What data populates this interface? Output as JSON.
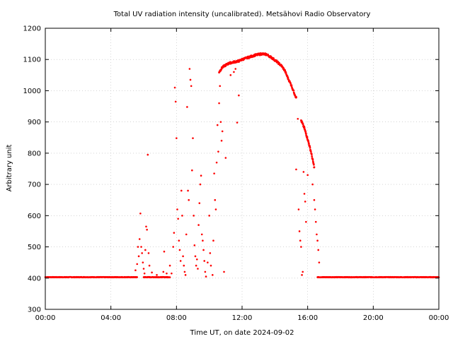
{
  "chart_data": {
    "type": "scatter",
    "title": "Total UV radiation intensity (uncalibrated). Metsähovi Radio Observatory",
    "xlabel": "Time UT, on date 2024-09-02",
    "ylabel": "Arbitrary unit",
    "x_unit": "hours UT",
    "xlim": [
      0,
      24
    ],
    "ylim": [
      300,
      1200
    ],
    "x_ticks": [
      {
        "value": 0,
        "label": "00:00"
      },
      {
        "value": 4,
        "label": "04:00"
      },
      {
        "value": 8,
        "label": "08:00"
      },
      {
        "value": 12,
        "label": "12:00"
      },
      {
        "value": 16,
        "label": "16:00"
      },
      {
        "value": 20,
        "label": "20:00"
      },
      {
        "value": 24,
        "label": "00:00"
      }
    ],
    "y_ticks": [
      300,
      400,
      500,
      600,
      700,
      800,
      900,
      1000,
      1100,
      1200
    ],
    "grid": true,
    "grid_style": "dotted",
    "marker_color": "#ff0000",
    "series": [
      {
        "baseline": {
          "value": 403,
          "ranges": [
            [
              0,
              5.6
            ],
            [
              6.0,
              7.6
            ],
            [
              16.6,
              24
            ]
          ]
        },
        "curve": [
          [
            10.6,
            1060
          ],
          [
            10.8,
            1075
          ],
          [
            11.0,
            1082
          ],
          [
            11.2,
            1088
          ],
          [
            11.5,
            1092
          ],
          [
            11.8,
            1095
          ],
          [
            12.0,
            1100
          ],
          [
            12.4,
            1107
          ],
          [
            12.8,
            1114
          ],
          [
            13.2,
            1118
          ],
          [
            13.5,
            1116
          ],
          [
            13.8,
            1106
          ],
          [
            14.1,
            1094
          ],
          [
            14.4,
            1080
          ],
          [
            14.6,
            1065
          ],
          [
            14.8,
            1040
          ],
          [
            15.0,
            1018
          ],
          [
            15.2,
            990
          ],
          [
            15.3,
            978
          ]
        ],
        "curve2": [
          [
            15.6,
            905
          ],
          [
            15.8,
            880
          ],
          [
            15.9,
            862
          ],
          [
            16.0,
            845
          ],
          [
            16.1,
            825
          ],
          [
            16.2,
            805
          ],
          [
            16.3,
            780
          ],
          [
            16.4,
            755
          ]
        ],
        "points": [
          [
            5.5,
            425
          ],
          [
            5.6,
            445
          ],
          [
            5.65,
            500
          ],
          [
            5.7,
            470
          ],
          [
            5.75,
            525
          ],
          [
            5.8,
            607
          ],
          [
            5.85,
            500
          ],
          [
            5.9,
            480
          ],
          [
            5.95,
            450
          ],
          [
            6.0,
            430
          ],
          [
            6.05,
            415
          ],
          [
            6.1,
            490
          ],
          [
            6.15,
            565
          ],
          [
            6.2,
            555
          ],
          [
            6.25,
            795
          ],
          [
            6.3,
            480
          ],
          [
            6.35,
            440
          ],
          [
            6.5,
            418
          ],
          [
            6.8,
            410
          ],
          [
            7.2,
            420
          ],
          [
            7.25,
            485
          ],
          [
            7.4,
            415
          ],
          [
            7.6,
            440
          ],
          [
            7.7,
            415
          ],
          [
            7.8,
            500
          ],
          [
            7.85,
            545
          ],
          [
            7.9,
            1010
          ],
          [
            7.95,
            965
          ],
          [
            8.0,
            848
          ],
          [
            8.05,
            620
          ],
          [
            8.1,
            590
          ],
          [
            8.15,
            520
          ],
          [
            8.2,
            490
          ],
          [
            8.25,
            455
          ],
          [
            8.3,
            680
          ],
          [
            8.35,
            600
          ],
          [
            8.4,
            470
          ],
          [
            8.45,
            440
          ],
          [
            8.5,
            420
          ],
          [
            8.55,
            410
          ],
          [
            8.6,
            540
          ],
          [
            8.65,
            948
          ],
          [
            8.7,
            680
          ],
          [
            8.75,
            650
          ],
          [
            8.8,
            1070
          ],
          [
            8.85,
            1035
          ],
          [
            8.9,
            1015
          ],
          [
            8.95,
            745
          ],
          [
            9.0,
            848
          ],
          [
            9.05,
            600
          ],
          [
            9.1,
            505
          ],
          [
            9.15,
            470
          ],
          [
            9.2,
            440
          ],
          [
            9.25,
            460
          ],
          [
            9.3,
            430
          ],
          [
            9.35,
            570
          ],
          [
            9.4,
            640
          ],
          [
            9.45,
            700
          ],
          [
            9.5,
            728
          ],
          [
            9.55,
            540
          ],
          [
            9.6,
            520
          ],
          [
            9.65,
            490
          ],
          [
            9.7,
            455
          ],
          [
            9.75,
            420
          ],
          [
            9.8,
            405
          ],
          [
            9.9,
            450
          ],
          [
            10.0,
            600
          ],
          [
            10.05,
            480
          ],
          [
            10.1,
            440
          ],
          [
            10.2,
            410
          ],
          [
            10.25,
            520
          ],
          [
            10.3,
            735
          ],
          [
            10.35,
            650
          ],
          [
            10.4,
            620
          ],
          [
            10.45,
            770
          ],
          [
            10.5,
            890
          ],
          [
            10.55,
            805
          ],
          [
            10.6,
            960
          ],
          [
            10.65,
            1015
          ],
          [
            10.7,
            900
          ],
          [
            10.75,
            840
          ],
          [
            10.8,
            870
          ],
          [
            10.9,
            420
          ],
          [
            11.0,
            785
          ],
          [
            11.3,
            1050
          ],
          [
            11.5,
            1060
          ],
          [
            11.6,
            1070
          ],
          [
            11.7,
            898
          ],
          [
            11.8,
            985
          ],
          [
            15.3,
            748
          ],
          [
            15.4,
            910
          ],
          [
            15.45,
            620
          ],
          [
            15.5,
            550
          ],
          [
            15.55,
            520
          ],
          [
            15.6,
            500
          ],
          [
            15.65,
            410
          ],
          [
            15.7,
            420
          ],
          [
            15.75,
            740
          ],
          [
            15.8,
            670
          ],
          [
            15.85,
            645
          ],
          [
            15.9,
            580
          ],
          [
            16.0,
            730
          ],
          [
            16.3,
            700
          ],
          [
            16.4,
            650
          ],
          [
            16.45,
            620
          ],
          [
            16.5,
            580
          ],
          [
            16.55,
            540
          ],
          [
            16.6,
            520
          ],
          [
            16.65,
            490
          ],
          [
            16.7,
            450
          ]
        ]
      }
    ]
  }
}
